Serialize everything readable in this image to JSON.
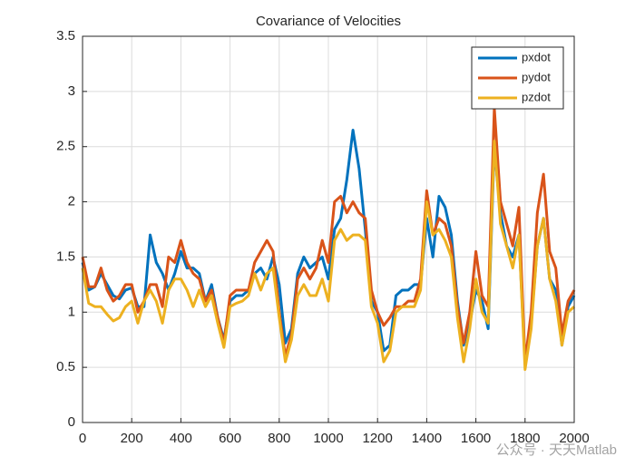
{
  "chart_data": {
    "type": "line",
    "title": "Covariance of Velocities",
    "x": [
      0,
      25,
      50,
      75,
      100,
      125,
      150,
      175,
      200,
      225,
      250,
      275,
      300,
      325,
      350,
      375,
      400,
      425,
      450,
      475,
      500,
      525,
      550,
      575,
      600,
      625,
      650,
      675,
      700,
      725,
      750,
      775,
      800,
      825,
      850,
      875,
      900,
      925,
      950,
      975,
      1000,
      1025,
      1050,
      1075,
      1100,
      1125,
      1150,
      1175,
      1200,
      1225,
      1250,
      1275,
      1300,
      1325,
      1350,
      1375,
      1400,
      1425,
      1450,
      1475,
      1500,
      1525,
      1550,
      1575,
      1600,
      1625,
      1650,
      1675,
      1700,
      1725,
      1750,
      1775,
      1800,
      1825,
      1850,
      1875,
      1900,
      1925,
      1950,
      1975,
      2000
    ],
    "series": [
      {
        "name": "pxdot",
        "color": "#0072BD",
        "values": [
          1.45,
          1.2,
          1.23,
          1.35,
          1.25,
          1.15,
          1.12,
          1.2,
          1.22,
          1.05,
          1.05,
          1.7,
          1.45,
          1.35,
          1.2,
          1.35,
          1.55,
          1.4,
          1.4,
          1.35,
          1.1,
          1.25,
          0.95,
          0.75,
          1.1,
          1.15,
          1.15,
          1.2,
          1.35,
          1.4,
          1.3,
          1.5,
          1.25,
          0.72,
          0.85,
          1.35,
          1.5,
          1.4,
          1.45,
          1.5,
          1.3,
          1.75,
          1.85,
          2.2,
          2.65,
          2.3,
          1.75,
          1.1,
          1.0,
          0.65,
          0.7,
          1.15,
          1.2,
          1.2,
          1.25,
          1.25,
          1.85,
          1.5,
          2.05,
          1.95,
          1.7,
          1.1,
          0.7,
          0.9,
          1.2,
          1.1,
          0.85,
          2.5,
          1.9,
          1.6,
          1.5,
          1.7,
          0.55,
          0.9,
          1.6,
          1.85,
          1.3,
          1.2,
          0.7,
          1.05,
          1.15
        ]
      },
      {
        "name": "pydot",
        "color": "#D95319",
        "values": [
          1.5,
          1.23,
          1.23,
          1.4,
          1.2,
          1.1,
          1.15,
          1.25,
          1.25,
          1.0,
          1.1,
          1.25,
          1.25,
          1.05,
          1.5,
          1.45,
          1.65,
          1.45,
          1.35,
          1.3,
          1.1,
          1.2,
          0.95,
          0.72,
          1.15,
          1.2,
          1.2,
          1.2,
          1.45,
          1.55,
          1.65,
          1.55,
          1.0,
          0.6,
          0.8,
          1.3,
          1.4,
          1.3,
          1.4,
          1.65,
          1.45,
          2.0,
          2.05,
          1.9,
          2.0,
          1.9,
          1.85,
          1.2,
          1.0,
          0.88,
          0.95,
          1.05,
          1.05,
          1.1,
          1.1,
          1.3,
          2.1,
          1.7,
          1.85,
          1.8,
          1.6,
          1.05,
          0.72,
          1.0,
          1.55,
          1.15,
          1.05,
          2.85,
          2.0,
          1.8,
          1.6,
          1.95,
          0.55,
          1.0,
          1.9,
          2.25,
          1.55,
          1.4,
          0.8,
          1.1,
          1.2
        ]
      },
      {
        "name": "pzdot",
        "color": "#EDB120",
        "values": [
          1.4,
          1.08,
          1.05,
          1.05,
          0.98,
          0.92,
          0.95,
          1.05,
          1.1,
          0.9,
          1.1,
          1.2,
          1.1,
          0.9,
          1.2,
          1.3,
          1.3,
          1.2,
          1.05,
          1.2,
          1.05,
          1.15,
          0.9,
          0.68,
          1.05,
          1.08,
          1.1,
          1.15,
          1.35,
          1.2,
          1.35,
          1.4,
          0.95,
          0.55,
          0.75,
          1.15,
          1.25,
          1.15,
          1.15,
          1.3,
          1.1,
          1.65,
          1.75,
          1.65,
          1.7,
          1.7,
          1.65,
          1.05,
          0.9,
          0.55,
          0.65,
          1.0,
          1.05,
          1.05,
          1.05,
          1.2,
          2.0,
          1.7,
          1.75,
          1.65,
          1.5,
          0.95,
          0.55,
          0.85,
          1.3,
          1.0,
          0.9,
          2.55,
          1.8,
          1.6,
          1.4,
          1.7,
          0.48,
          0.85,
          1.6,
          1.85,
          1.3,
          1.1,
          0.7,
          1.0,
          1.05
        ]
      }
    ],
    "xlim": [
      0,
      2000
    ],
    "xticks": [
      0,
      200,
      400,
      600,
      800,
      1000,
      1200,
      1400,
      1600,
      1800,
      2000
    ],
    "ylim": [
      0,
      3.5
    ],
    "yticks": [
      0,
      0.5,
      1,
      1.5,
      2,
      2.5,
      3,
      3.5
    ],
    "grid": true,
    "legend": "northeast",
    "watermark": "公众号 · 天天Matlab"
  }
}
